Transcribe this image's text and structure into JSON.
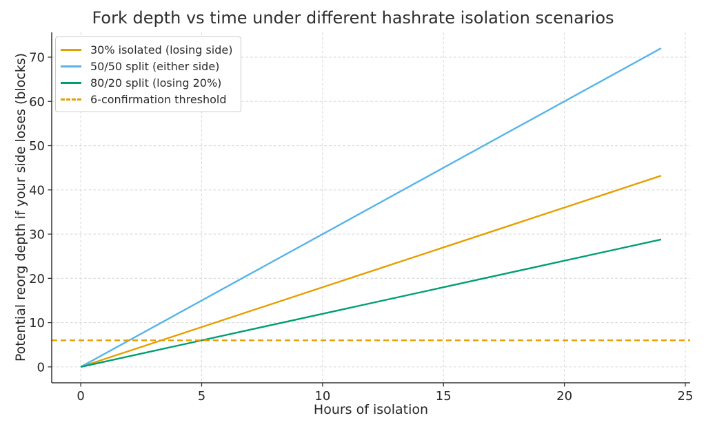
{
  "colors": {
    "background": "#FFFFFF",
    "axis": "#333333",
    "grid": "#DADADA",
    "text": "#262626",
    "legend_border": "#CBCBCB"
  },
  "chart_data": {
    "type": "line",
    "title": "Fork depth vs time under different hashrate isolation scenarios",
    "xlabel": "Hours of isolation",
    "ylabel": "Potential reorg depth if your side loses (blocks)",
    "xlim": [
      -1.2,
      25.2
    ],
    "ylim": [
      -3.6,
      75.6
    ],
    "xticks": [
      0,
      5,
      10,
      15,
      20,
      25
    ],
    "yticks": [
      0,
      10,
      20,
      30,
      40,
      50,
      60,
      70
    ],
    "grid": true,
    "grid_style": "dashed",
    "legend_position": "upper-left",
    "series": [
      {
        "name": "30% isolated (losing side)",
        "color": "#E69F00",
        "style": "solid",
        "x": [
          0,
          24
        ],
        "y": [
          0,
          43.2
        ]
      },
      {
        "name": "50/50 split (either side)",
        "color": "#56B4E9",
        "style": "solid",
        "x": [
          0,
          24
        ],
        "y": [
          0,
          72
        ]
      },
      {
        "name": "80/20 split (losing 20%)",
        "color": "#009E73",
        "style": "solid",
        "x": [
          0,
          24
        ],
        "y": [
          0,
          28.8
        ]
      },
      {
        "name": "6-confirmation threshold",
        "color": "#E69F00",
        "style": "dashed",
        "x": [
          -1.2,
          25.2
        ],
        "y": [
          6,
          6
        ]
      }
    ]
  }
}
